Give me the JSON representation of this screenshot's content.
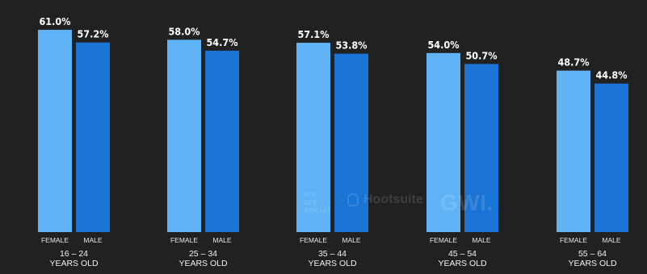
{
  "chart_data": {
    "type": "bar",
    "title": "",
    "xlabel": "",
    "ylabel": "",
    "ylim": [
      0,
      61.0
    ],
    "grid": false,
    "legend": "none",
    "categories": [
      {
        "range": "16 – 24",
        "sub": "YEARS OLD"
      },
      {
        "range": "25 – 34",
        "sub": "YEARS OLD"
      },
      {
        "range": "35 – 44",
        "sub": "YEARS OLD"
      },
      {
        "range": "45 – 54",
        "sub": "YEARS OLD"
      },
      {
        "range": "55 – 64",
        "sub": "YEARS OLD"
      }
    ],
    "series": [
      {
        "name": "FEMALE",
        "color": "#5fb3f5",
        "values": [
          61.0,
          58.0,
          57.1,
          54.0,
          48.7
        ],
        "labels": [
          "61.0%",
          "58.0%",
          "57.1%",
          "54.0%",
          "48.7%"
        ]
      },
      {
        "name": "MALE",
        "color": "#1a74d4",
        "values": [
          57.2,
          54.7,
          53.8,
          50.7,
          44.8
        ],
        "labels": [
          "57.2%",
          "54.7%",
          "53.8%",
          "50.7%",
          "44.8%"
        ]
      }
    ]
  },
  "watermarks": {
    "wearesocial": [
      "we",
      "are",
      "social"
    ],
    "hootsuite": "Hootsuite",
    "gwi": "GWI."
  },
  "colors": {
    "background": "#212121",
    "female": "#5fb3f5",
    "male": "#1a74d4"
  }
}
